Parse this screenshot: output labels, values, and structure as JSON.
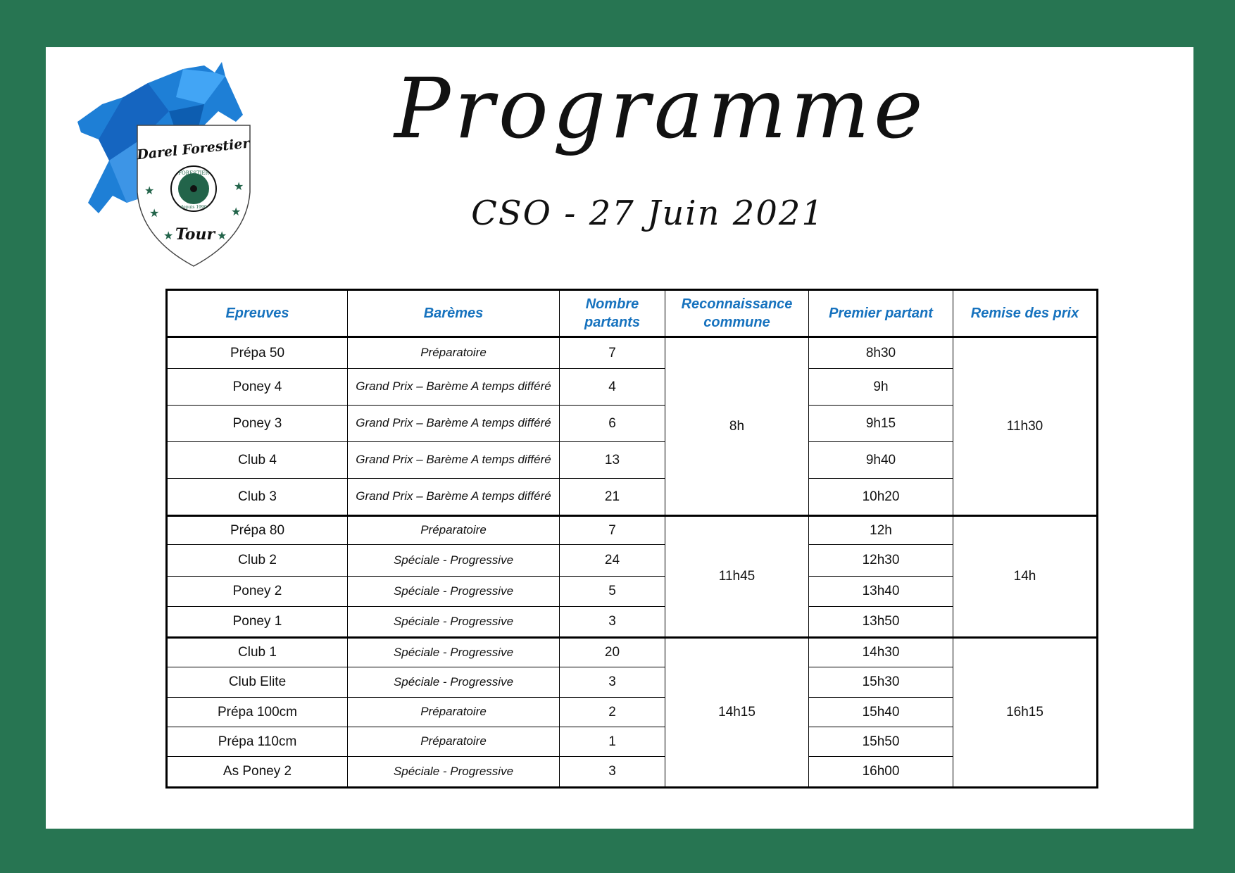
{
  "logo": {
    "top_text": "Darel Forestier",
    "bottom_text": "Tour",
    "seal_text": "FORESTIER",
    "seal_sub": "depuis 1990",
    "horse_color": "#1e7fd6",
    "star_color": "#22644a"
  },
  "header": {
    "title": "Programme",
    "subtitle": "CSO -  27 Juin 2021"
  },
  "colors": {
    "frame": "#277552",
    "header_text": "#1672be"
  },
  "table": {
    "columns": [
      "Epreuves",
      "Barèmes",
      "Nombre partants",
      "Reconnaissance commune",
      "Premier partant",
      "Remise des prix"
    ],
    "groups": [
      {
        "reconnaissance": "8h",
        "remise": "11h30",
        "rows": [
          {
            "epreuve": "Prépa 50",
            "bareme": "Préparatoire",
            "partants": "7",
            "premier": "8h30"
          },
          {
            "epreuve": "Poney 4",
            "bareme": "Grand Prix – Barème A temps différé",
            "partants": "4",
            "premier": "9h"
          },
          {
            "epreuve": "Poney 3",
            "bareme": "Grand Prix – Barème A temps différé",
            "partants": "6",
            "premier": "9h15"
          },
          {
            "epreuve": "Club 4",
            "bareme": "Grand Prix – Barème A temps différé",
            "partants": "13",
            "premier": "9h40"
          },
          {
            "epreuve": "Club 3",
            "bareme": "Grand Prix – Barème A temps différé",
            "partants": "21",
            "premier": "10h20"
          }
        ]
      },
      {
        "reconnaissance": "11h45",
        "remise": "14h",
        "rows": [
          {
            "epreuve": "Prépa 80",
            "bareme": "Préparatoire",
            "partants": "7",
            "premier": "12h"
          },
          {
            "epreuve": "Club 2",
            "bareme": "Spéciale - Progressive",
            "partants": "24",
            "premier": "12h30"
          },
          {
            "epreuve": "Poney 2",
            "bareme": "Spéciale - Progressive",
            "partants": "5",
            "premier": "13h40"
          },
          {
            "epreuve": "Poney 1",
            "bareme": "Spéciale - Progressive",
            "partants": "3",
            "premier": "13h50"
          }
        ]
      },
      {
        "reconnaissance": "14h15",
        "remise": "16h15",
        "rows": [
          {
            "epreuve": "Club 1",
            "bareme": "Spéciale - Progressive",
            "partants": "20",
            "premier": "14h30"
          },
          {
            "epreuve": "Club Elite",
            "bareme": "Spéciale - Progressive",
            "partants": "3",
            "premier": "15h30"
          },
          {
            "epreuve": "Prépa 100cm",
            "bareme": "Préparatoire",
            "partants": "2",
            "premier": "15h40"
          },
          {
            "epreuve": "Prépa 110cm",
            "bareme": "Préparatoire",
            "partants": "1",
            "premier": "15h50"
          },
          {
            "epreuve": "As Poney 2",
            "bareme": "Spéciale - Progressive",
            "partants": "3",
            "premier": "16h00"
          }
        ]
      }
    ]
  }
}
